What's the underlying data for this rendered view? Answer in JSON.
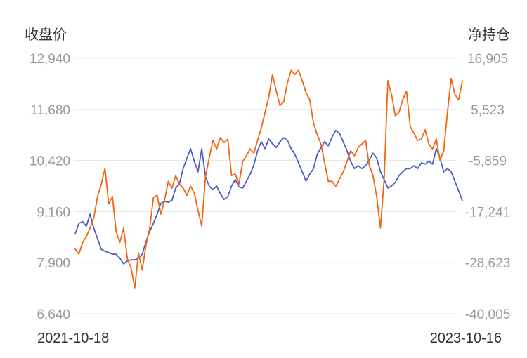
{
  "chart_data": {
    "type": "line",
    "grid": true,
    "legend": "none",
    "left_axis": {
      "label": "收盘价",
      "ylim": [
        6640,
        12940
      ],
      "ticks": [
        "12,940",
        "11,680",
        "10,420",
        "9,160",
        "7,900",
        "6,640"
      ]
    },
    "right_axis": {
      "label": "净持仓",
      "ylim": [
        -40005,
        16905
      ],
      "ticks": [
        "16,905",
        "5,523",
        "-5,859",
        "-17,241",
        "-28,623",
        "-40,005"
      ]
    },
    "x_tick_labels": [
      "2021-10-18",
      "2023-10-16"
    ],
    "x": [
      "2021-10-18",
      "2021-10-25",
      "2021-11-01",
      "2021-11-08",
      "2021-11-15",
      "2021-11-22",
      "2021-11-29",
      "2021-12-06",
      "2021-12-13",
      "2021-12-20",
      "2021-12-27",
      "2022-01-03",
      "2022-01-10",
      "2022-01-17",
      "2022-01-24",
      "2022-01-31",
      "2022-02-07",
      "2022-02-14",
      "2022-02-21",
      "2022-02-28",
      "2022-03-07",
      "2022-03-14",
      "2022-03-21",
      "2022-03-28",
      "2022-04-04",
      "2022-04-11",
      "2022-04-18",
      "2022-04-25",
      "2022-05-02",
      "2022-05-09",
      "2022-05-16",
      "2022-05-23",
      "2022-05-30",
      "2022-06-06",
      "2022-06-13",
      "2022-06-20",
      "2022-06-27",
      "2022-07-04",
      "2022-07-11",
      "2022-07-18",
      "2022-07-25",
      "2022-08-01",
      "2022-08-08",
      "2022-08-15",
      "2022-08-22",
      "2022-08-29",
      "2022-09-05",
      "2022-09-12",
      "2022-09-19",
      "2022-09-26",
      "2022-10-03",
      "2022-10-10",
      "2022-10-17",
      "2022-10-24",
      "2022-10-31",
      "2022-11-07",
      "2022-11-14",
      "2022-11-21",
      "2022-11-28",
      "2022-12-05",
      "2022-12-12",
      "2022-12-19",
      "2022-12-26",
      "2023-01-02",
      "2023-01-09",
      "2023-01-16",
      "2023-01-23",
      "2023-01-30",
      "2023-02-06",
      "2023-02-13",
      "2023-02-20",
      "2023-02-27",
      "2023-03-06",
      "2023-03-13",
      "2023-03-20",
      "2023-03-27",
      "2023-04-03",
      "2023-04-10",
      "2023-04-17",
      "2023-04-24",
      "2023-05-01",
      "2023-05-08",
      "2023-05-15",
      "2023-05-22",
      "2023-05-29",
      "2023-06-05",
      "2023-06-12",
      "2023-06-19",
      "2023-06-26",
      "2023-07-03",
      "2023-07-10",
      "2023-07-17",
      "2023-07-24",
      "2023-07-31",
      "2023-08-07",
      "2023-08-14",
      "2023-08-21",
      "2023-08-28",
      "2023-09-04",
      "2023-09-11",
      "2023-09-18",
      "2023-09-25",
      "2023-10-02",
      "2023-10-09",
      "2023-10-16"
    ],
    "series": [
      {
        "axis": "left",
        "color": "#4b5cc4",
        "values": [
          8610,
          8870,
          8910,
          8800,
          9100,
          8750,
          8490,
          8230,
          8180,
          8150,
          8110,
          8110,
          8010,
          7870,
          7940,
          7970,
          7970,
          8010,
          8110,
          8410,
          8670,
          8870,
          9100,
          9360,
          9410,
          9390,
          9440,
          9740,
          9840,
          10220,
          10470,
          10710,
          10400,
          10140,
          10710,
          10020,
          9790,
          9700,
          9790,
          9600,
          9460,
          9530,
          9790,
          9950,
          9770,
          9740,
          9910,
          10080,
          10310,
          10660,
          10880,
          10710,
          10950,
          10830,
          10740,
          10880,
          10980,
          10920,
          10710,
          10570,
          10360,
          10140,
          9910,
          10080,
          10220,
          10570,
          10740,
          10880,
          10780,
          11000,
          11160,
          11090,
          10880,
          10660,
          10400,
          10220,
          10290,
          10220,
          10290,
          10430,
          10600,
          10480,
          10140,
          9950,
          9740,
          9790,
          9880,
          10050,
          10140,
          10220,
          10220,
          10290,
          10220,
          10360,
          10330,
          10400,
          10330,
          10710,
          10480,
          10140,
          10220,
          10140,
          9910,
          9670,
          9430
        ]
      },
      {
        "axis": "right",
        "color": "#f26511",
        "values": [
          -25600,
          -26700,
          -24100,
          -22800,
          -20900,
          -18600,
          -13900,
          -11100,
          -7600,
          -15500,
          -13900,
          -21700,
          -24100,
          -20900,
          -27700,
          -29800,
          -34200,
          -26400,
          -30300,
          -24800,
          -20900,
          -14200,
          -13600,
          -17800,
          -14700,
          -10500,
          -12000,
          -9200,
          -11100,
          -12000,
          -13600,
          -11600,
          -13100,
          -17000,
          -20500,
          -9500,
          -5300,
          -1400,
          -3300,
          -800,
          -1900,
          -1100,
          -9200,
          -8900,
          -11100,
          -6100,
          -4800,
          -3300,
          -4200,
          -1400,
          1400,
          4900,
          8300,
          13300,
          9600,
          6400,
          7200,
          11400,
          14200,
          13300,
          14200,
          11900,
          9200,
          7700,
          2500,
          -100,
          -2200,
          -6400,
          -10500,
          -10500,
          -11600,
          -10000,
          -8400,
          -6100,
          -3700,
          -4800,
          -3000,
          -2200,
          -1400,
          -6900,
          -9200,
          -13900,
          -20900,
          -10000,
          11900,
          8800,
          4100,
          4900,
          7700,
          9600,
          1700,
          200,
          -1400,
          -1100,
          1000,
          -2200,
          -3300,
          -1100,
          -5800,
          -3700,
          4900,
          12400,
          8800,
          7700,
          11900
        ]
      }
    ]
  }
}
